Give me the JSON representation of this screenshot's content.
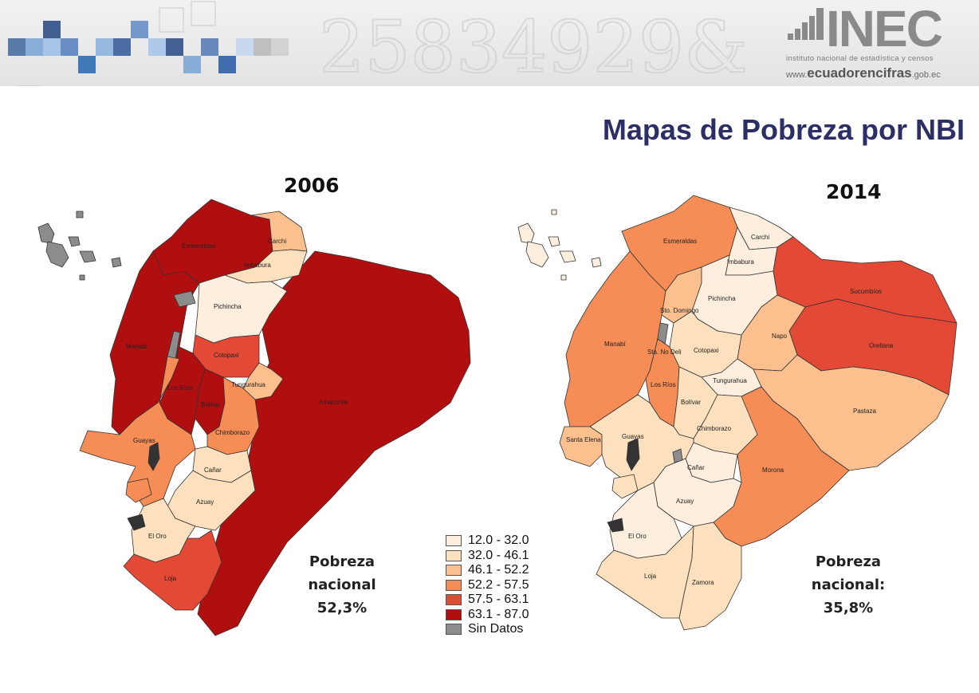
{
  "banner": {
    "logo_text": "INEC",
    "logo_sub": "instituto nacional de estadística y censos",
    "url_prefix": "www.",
    "url_main": "ecuadorencifras",
    "url_suffix": ".gob.ec"
  },
  "title": "Mapas de Pobreza por NBI",
  "map_2006": {
    "year": "2006",
    "pobreza_line1": "Pobreza",
    "pobreza_line2": "nacional",
    "pobreza_line3": "52,3%",
    "provinces": [
      "Esmeraldas",
      "Carchi",
      "Imbabura",
      "Pichincha",
      "Manabí",
      "Cotopaxi",
      "Tungurahua",
      "Los Ríos",
      "Bolívar",
      "Amazonía",
      "Guayas",
      "Chimborazo",
      "Cañar",
      "Azuay",
      "El Oro",
      "Loja"
    ]
  },
  "map_2014": {
    "year": "2014",
    "pobreza_line1": "Pobreza",
    "pobreza_line2": "nacional:",
    "pobreza_line3": "35,8%",
    "provinces": [
      "Esmeraldas",
      "Carchi",
      "Imbabura",
      "Sucumbíos",
      "Sto. Domingo",
      "Pichincha",
      "Napo",
      "Manabí",
      "Sta. No Deli",
      "Cotopaxi",
      "Orellana",
      "Los Ríos",
      "Tungurahua",
      "Bolívar",
      "Pastaza",
      "Santa Elena",
      "Guayas",
      "Chimborazo",
      "Cañar",
      "Morona",
      "Azuay",
      "El Oro",
      "Loja",
      "Zamora"
    ]
  },
  "legend": [
    {
      "label": "12.0 - 32.0",
      "color": "#fdeedd"
    },
    {
      "label": "32.0 - 46.1",
      "color": "#fde0bd"
    },
    {
      "label": "46.1 - 52.2",
      "color": "#fcc08f"
    },
    {
      "label": "52.2 - 57.5",
      "color": "#f68d56"
    },
    {
      "label": "57.5 - 63.1",
      "color": "#e34934"
    },
    {
      "label": "63.1 - 87.0",
      "color": "#b10f0f"
    },
    {
      "label": "Sin Datos",
      "color": "#8c8c8c"
    }
  ]
}
